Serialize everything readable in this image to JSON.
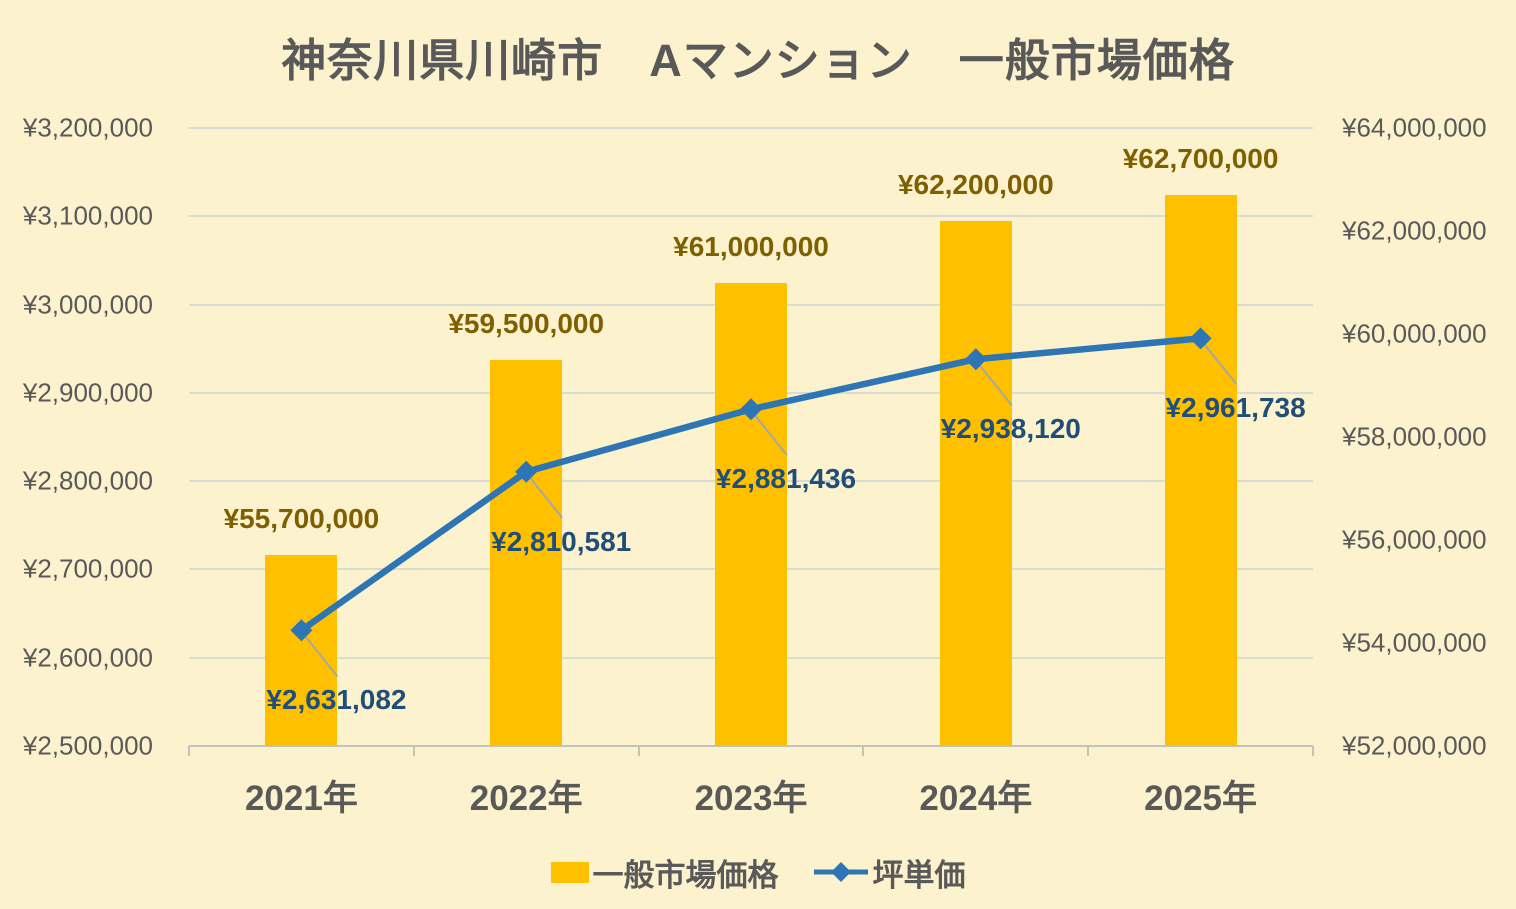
{
  "chart_data": {
    "type": "combo-bar-line",
    "title": "神奈川県川崎市　Aマンション　一般市場価格",
    "categories": [
      "2021年",
      "2022年",
      "2023年",
      "2024年",
      "2025年"
    ],
    "series": [
      {
        "name": "一般市場価格",
        "type": "bar",
        "axis": "right",
        "color": "#FFC000",
        "label_color": "#7F6000",
        "values": [
          55700000,
          59500000,
          61000000,
          62200000,
          62700000
        ],
        "data_labels": [
          "¥55,700,000",
          "¥59,500,000",
          "¥61,000,000",
          "¥62,200,000",
          "¥62,700,000"
        ]
      },
      {
        "name": "坪単価",
        "type": "line",
        "axis": "left",
        "color": "#2E75B6",
        "label_color": "#1F4E79",
        "values": [
          2631082,
          2810581,
          2881436,
          2938120,
          2961738
        ],
        "data_labels": [
          "¥2,631,082",
          "¥2,810,581",
          "¥2,881,436",
          "¥2,938,120",
          "¥2,961,738"
        ]
      }
    ],
    "left_axis": {
      "min": 2500000,
      "max": 3200000,
      "step": 100000,
      "tick_labels": [
        "¥3,200,000",
        "¥3,100,000",
        "¥3,000,000",
        "¥2,900,000",
        "¥2,800,000",
        "¥2,700,000",
        "¥2,600,000",
        "¥2,500,000"
      ]
    },
    "right_axis": {
      "min": 52000000,
      "max": 64000000,
      "step": 2000000,
      "tick_labels": [
        "¥64,000,000",
        "¥62,000,000",
        "¥60,000,000",
        "¥58,000,000",
        "¥56,000,000",
        "¥54,000,000",
        "¥52,000,000"
      ]
    },
    "legend": {
      "position": "bottom",
      "items": [
        "一般市場価格",
        "坪単価"
      ]
    },
    "grid": true,
    "background": "#FDF2CE",
    "colors": {
      "bar": "#FFC000",
      "line": "#2E75B6",
      "bar_label": "#7F6000",
      "line_label": "#1F4E79",
      "axis_text": "#595959",
      "gridline": "#DBDBD6",
      "leader_line": "#A6A6A6"
    }
  }
}
